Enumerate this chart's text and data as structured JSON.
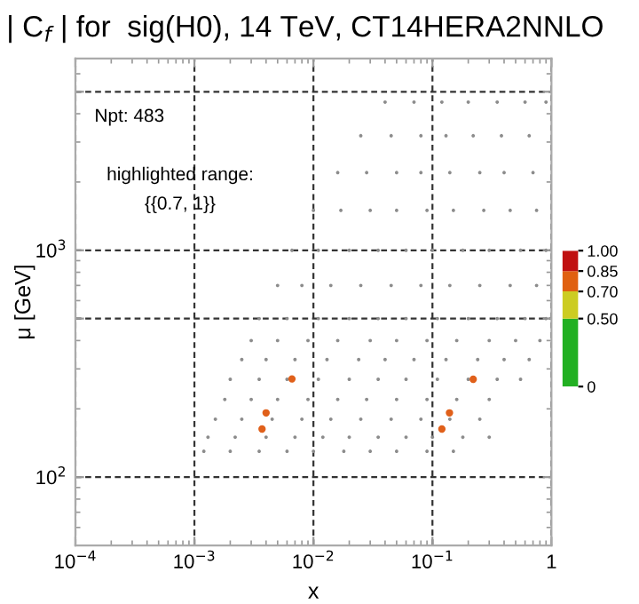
{
  "chart_data": {
    "type": "scatter",
    "title": "| C$_{f}$ | for  sig(H0), 14 TeV, CT14HERA2NNLO",
    "xlabel": "x",
    "ylabel": "μ [GeV]",
    "log": "xy",
    "grid": true,
    "marker": "circle",
    "xlim": [
      0.0001,
      1
    ],
    "ylim": [
      50,
      7000
    ],
    "xticks": [
      {
        "value": 0.0001,
        "label": "10$^{−4}$"
      },
      {
        "value": 0.001,
        "label": "10$^{−3}$"
      },
      {
        "value": 0.01,
        "label": "10$^{−2}$"
      },
      {
        "value": 0.1,
        "label": "10$^{−1}$"
      },
      1
    ],
    "yticks": [
      {
        "value": 100,
        "label": "10$^{2}$"
      },
      {
        "value": 500,
        "label": null
      },
      {
        "value": 1000,
        "label": "10$^{3}$"
      },
      {
        "value": 5000,
        "label": null
      }
    ],
    "clim": [
      0,
      1
    ],
    "cticks": [
      {
        "value": 0,
        "label": "0"
      },
      {
        "value": 0.5,
        "label": "0.50"
      },
      {
        "value": 0.7,
        "label": "0.70"
      },
      {
        "value": 0.85,
        "label": "0.85"
      },
      {
        "value": 1,
        "label": "1.00"
      }
    ],
    "annotations": [
      "Npt: 483",
      "highlighted range:",
      "{{0.7, 1}}"
    ],
    "series": [
      {
        "color": "#8c8c8c",
        "x": [
          0.0012,
          0.002,
          0.0035,
          0.006,
          0.01,
          0.018,
          0.03,
          0.05,
          0.09,
          0.15,
          0.0013,
          0.0022,
          0.004,
          0.007,
          0.012,
          0.02,
          0.035,
          0.06,
          0.1,
          0.18,
          0.3,
          0.0015,
          0.0025,
          0.0045,
          0.008,
          0.014,
          0.025,
          0.045,
          0.08,
          0.14,
          0.25,
          0.0018,
          0.003,
          0.005,
          0.009,
          0.016,
          0.028,
          0.05,
          0.09,
          0.16,
          0.3,
          0.002,
          0.0035,
          0.006,
          0.011,
          0.02,
          0.035,
          0.06,
          0.11,
          0.2,
          0.35,
          0.55,
          0.0025,
          0.004,
          0.007,
          0.013,
          0.024,
          0.04,
          0.07,
          0.13,
          0.24,
          0.4,
          0.65,
          0.003,
          0.005,
          0.009,
          0.016,
          0.03,
          0.05,
          0.09,
          0.16,
          0.3,
          0.5,
          0.8,
          0.0035,
          0.006,
          0.011,
          0.02,
          0.035,
          0.06,
          0.11,
          0.2,
          0.35,
          0.6,
          0.9,
          0.005,
          0.008,
          0.014,
          0.025,
          0.045,
          0.08,
          0.14,
          0.25,
          0.45,
          0.75,
          0.0066,
          0.011,
          0.02,
          0.035,
          0.06,
          0.1,
          0.18,
          0.3,
          0.55,
          0.9,
          0.01,
          0.017,
          0.03,
          0.05,
          0.09,
          0.15,
          0.27,
          0.45,
          0.75,
          0.016,
          0.028,
          0.05,
          0.08,
          0.14,
          0.25,
          0.4,
          0.7,
          0.025,
          0.045,
          0.08,
          0.13,
          0.22,
          0.38,
          0.65,
          0.04,
          0.07,
          0.12,
          0.2,
          0.35,
          0.6,
          0.9
        ],
        "values": [
          130,
          130,
          130,
          130,
          130,
          130,
          130,
          130,
          130,
          130,
          150,
          150,
          150,
          150,
          150,
          150,
          150,
          150,
          150,
          150,
          150,
          180,
          180,
          180,
          180,
          180,
          180,
          180,
          180,
          180,
          180,
          220,
          220,
          220,
          220,
          220,
          220,
          220,
          220,
          220,
          220,
          270,
          270,
          270,
          270,
          270,
          270,
          270,
          270,
          270,
          270,
          270,
          330,
          330,
          330,
          330,
          330,
          330,
          330,
          330,
          330,
          330,
          330,
          400,
          400,
          400,
          400,
          400,
          400,
          400,
          400,
          400,
          400,
          400,
          500,
          500,
          500,
          500,
          500,
          500,
          500,
          500,
          500,
          500,
          500,
          700,
          700,
          700,
          700,
          700,
          700,
          700,
          700,
          700,
          700,
          1000,
          1000,
          1000,
          1000,
          1000,
          1000,
          1000,
          1000,
          1000,
          1000,
          1500,
          1500,
          1500,
          1500,
          1500,
          1500,
          1500,
          1500,
          1500,
          2200,
          2200,
          2200,
          2200,
          2200,
          2200,
          2200,
          2200,
          3200,
          3200,
          3200,
          3200,
          3200,
          3200,
          3200,
          4500,
          4500,
          4500,
          4500,
          4500,
          4500,
          4500
        ]
      },
      {
        "color": "#e0601a",
        "x": [
          0.0066,
          0.004,
          0.0037,
          0.22,
          0.139,
          0.12
        ],
        "values": [
          271,
          192,
          163,
          270,
          192,
          163
        ]
      }
    ]
  }
}
